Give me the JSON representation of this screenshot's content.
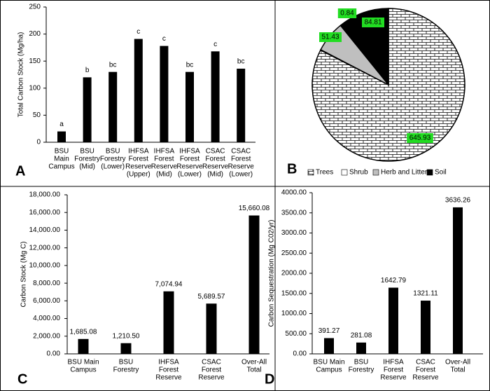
{
  "chart_data": [
    {
      "type": "bar",
      "panel_label": "A",
      "ylabel": "Total Carbon Stock (Mg/ha)",
      "categories": [
        [
          "BSU",
          "Main",
          "Campus"
        ],
        [
          "BSU",
          "Forestry",
          "(Mid)"
        ],
        [
          "BSU",
          "Forestry",
          "(Lower)"
        ],
        [
          "IHFSA",
          "Forest",
          "Reserve",
          "(Upper)"
        ],
        [
          "IHFSA",
          "Forest",
          "Reserve",
          "(Mid)"
        ],
        [
          "IHFSA",
          "Forest",
          "Reserve",
          "(Lower)"
        ],
        [
          "CSAC",
          "Forest",
          "Reserve",
          "(Mid)"
        ],
        [
          "CSAC",
          "Forest",
          "Reserve",
          "(Lower)"
        ]
      ],
      "values": [
        20,
        120,
        130,
        191,
        178,
        130,
        168,
        136
      ],
      "annotations": [
        "a",
        "b",
        "bc",
        "c",
        "c",
        "bc",
        "c",
        "bc"
      ],
      "color": "#000000",
      "ylim": [
        0,
        250
      ],
      "yticks": [
        0,
        50,
        100,
        150,
        200,
        250
      ]
    },
    {
      "type": "pie",
      "panel_label": "B",
      "categories": [
        "Trees",
        "Shrub",
        "Herb and Litters",
        "Soil"
      ],
      "values": [
        645.93,
        0.84,
        51.43,
        84.81
      ],
      "colors": [
        "#ffffff",
        "#ffffff",
        "#bfbfbf",
        "#000000"
      ],
      "hatch": [
        true,
        false,
        false,
        false
      ],
      "label_color": "#22dd22"
    },
    {
      "type": "bar",
      "panel_label": "C",
      "ylabel": "Carbon Stock (Mg C)",
      "categories": [
        [
          "BSU Main",
          "Campus"
        ],
        [
          "BSU",
          "Forestry"
        ],
        [
          "IHFSA",
          "Forest",
          "Reserve"
        ],
        [
          "CSAC",
          "Forest",
          "Reserve"
        ],
        [
          "Over-All",
          "Total"
        ]
      ],
      "values": [
        1685.08,
        1210.5,
        7074.94,
        5689.57,
        15660.08
      ],
      "value_labels": [
        "1,685.08",
        "1,210.50",
        "7,074.94",
        "5,689.57",
        "15,660.08"
      ],
      "color": "#000000",
      "ylim": [
        0,
        18000
      ],
      "yticks": [
        {
          "value": 0,
          "label": "0.00"
        },
        {
          "value": 2000,
          "label": "2,000.00"
        },
        {
          "value": 4000,
          "label": "4,000.00"
        },
        {
          "value": 6000,
          "label": "6,000.00"
        },
        {
          "value": 8000,
          "label": "8,000.00"
        },
        {
          "value": 10000,
          "label": "10,000.00"
        },
        {
          "value": 12000,
          "label": "12,000.00"
        },
        {
          "value": 14000,
          "label": "14,000.00"
        },
        {
          "value": 16000,
          "label": "16,000.00"
        },
        {
          "value": 18000,
          "label": "18,000.00"
        }
      ]
    },
    {
      "type": "bar",
      "panel_label": "D",
      "ylabel": "Carbon Sequestration (Mg C02/yr)",
      "categories": [
        [
          "BSU Main",
          "Campus"
        ],
        [
          "BSU",
          "Forestry"
        ],
        [
          "IHFSA",
          "Forest",
          "Reserve"
        ],
        [
          "CSAC",
          "Forest",
          "Reserve"
        ],
        [
          "Over-All",
          "Total"
        ]
      ],
      "values": [
        391.27,
        281.08,
        1642.79,
        1321.11,
        3636.26
      ],
      "color": "#000000",
      "ylim": [
        0,
        4000
      ],
      "yticks": [
        {
          "value": 0,
          "label": "0.00"
        },
        {
          "value": 500,
          "label": "500.00"
        },
        {
          "value": 1000,
          "label": "1000.00"
        },
        {
          "value": 1500,
          "label": "1500.00"
        },
        {
          "value": 2000,
          "label": "2000.00"
        },
        {
          "value": 2500,
          "label": "2500.00"
        },
        {
          "value": 3000,
          "label": "3000.00"
        },
        {
          "value": 3500,
          "label": "3500.00"
        },
        {
          "value": 4000,
          "label": "4000.00"
        }
      ]
    }
  ]
}
